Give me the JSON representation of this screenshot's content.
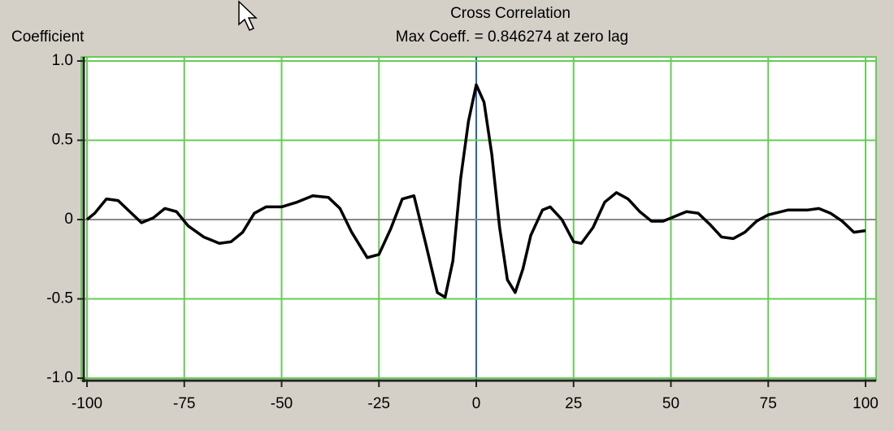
{
  "chart_data": {
    "type": "line",
    "title": "Cross Correlation",
    "subtitle": "Max Coeff. = 0.846274 at zero lag",
    "y_label": "Coefficient",
    "grid": true,
    "xlim": [
      -100,
      100
    ],
    "ylim": [
      -1,
      1
    ],
    "xticks": [
      -100,
      -75,
      -50,
      -25,
      0,
      25,
      50,
      75,
      100
    ],
    "yticks": [
      {
        "value": -1,
        "label": "-1.0"
      },
      -0.5,
      0,
      0.5,
      {
        "value": 1,
        "label": "1.0"
      }
    ],
    "x": [
      -100,
      -98,
      -95,
      -92,
      -89,
      -86,
      -83,
      -80,
      -77,
      -74,
      -70,
      -66,
      -63,
      -60,
      -57,
      -54,
      -50,
      -46,
      -42,
      -38,
      -35,
      -32,
      -28,
      -25,
      -22,
      -19,
      -16,
      -13,
      -10,
      -8,
      -6,
      -4,
      -2,
      0,
      2,
      4,
      6,
      8,
      10,
      12,
      14,
      17,
      19,
      22,
      25,
      27,
      30,
      33,
      36,
      39,
      42,
      45,
      48,
      51,
      54,
      57,
      60,
      63,
      66,
      69,
      72,
      75,
      80,
      85,
      88,
      91,
      94,
      97,
      100
    ],
    "series": [
      {
        "color": "#000000",
        "values": [
          0,
          0.04,
          0.13,
          0.12,
          0.05,
          -0.02,
          0.01,
          0.07,
          0.05,
          -0.04,
          -0.11,
          -0.15,
          -0.14,
          -0.08,
          0.04,
          0.08,
          0.08,
          0.11,
          0.15,
          0.14,
          0.07,
          -0.08,
          -0.24,
          -0.22,
          -0.06,
          0.13,
          0.15,
          -0.15,
          -0.46,
          -0.49,
          -0.26,
          0.26,
          0.62,
          0.85,
          0.74,
          0.41,
          -0.05,
          -0.38,
          -0.46,
          -0.31,
          -0.1,
          0.06,
          0.08,
          0,
          -0.14,
          -0.15,
          -0.05,
          0.11,
          0.17,
          0.13,
          0.05,
          -0.01,
          -0.01,
          0.02,
          0.05,
          0.04,
          -0.03,
          -0.11,
          -0.12,
          -0.08,
          -0.01,
          0.03,
          0.06,
          0.06,
          0.07,
          0.04,
          -0.01,
          -0.08,
          -0.07
        ]
      }
    ]
  }
}
